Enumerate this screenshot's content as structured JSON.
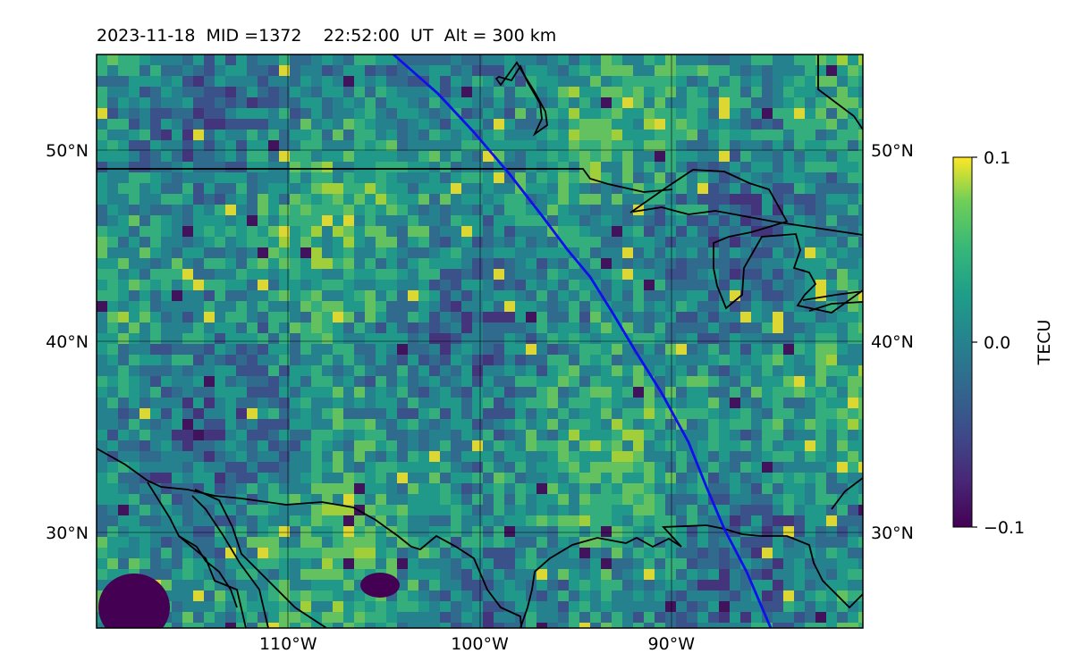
{
  "title": {
    "date": "2023-11-18",
    "mid": "MID =1372",
    "time": "22:52:00  UT",
    "alt": "Alt = 300 km"
  },
  "map": {
    "region": "Central North America",
    "lon_range": [
      -120,
      -80
    ],
    "lat_range": [
      25,
      55
    ],
    "gridlines": true,
    "lon_ticks": [
      {
        "lon": -110,
        "label": "110°W"
      },
      {
        "lon": -100,
        "label": "100°W"
      },
      {
        "lon": -90,
        "label": "90°W"
      }
    ],
    "lat_ticks": [
      {
        "lat": 50,
        "label": "50°N"
      },
      {
        "lat": 40,
        "label": "40°N"
      },
      {
        "lat": 30,
        "label": "30°N"
      }
    ],
    "field": "TEC perturbation",
    "colormap": "viridis",
    "trajectory_color": "#1010ee",
    "coastline_color": "#000000"
  },
  "colorbar": {
    "label": "TECU",
    "min": -0.1,
    "max": 0.1,
    "ticks": [
      {
        "value": 0.1,
        "label": "0.1"
      },
      {
        "value": 0.0,
        "label": "0.0"
      },
      {
        "value": -0.1,
        "label": "−0.1"
      }
    ]
  }
}
